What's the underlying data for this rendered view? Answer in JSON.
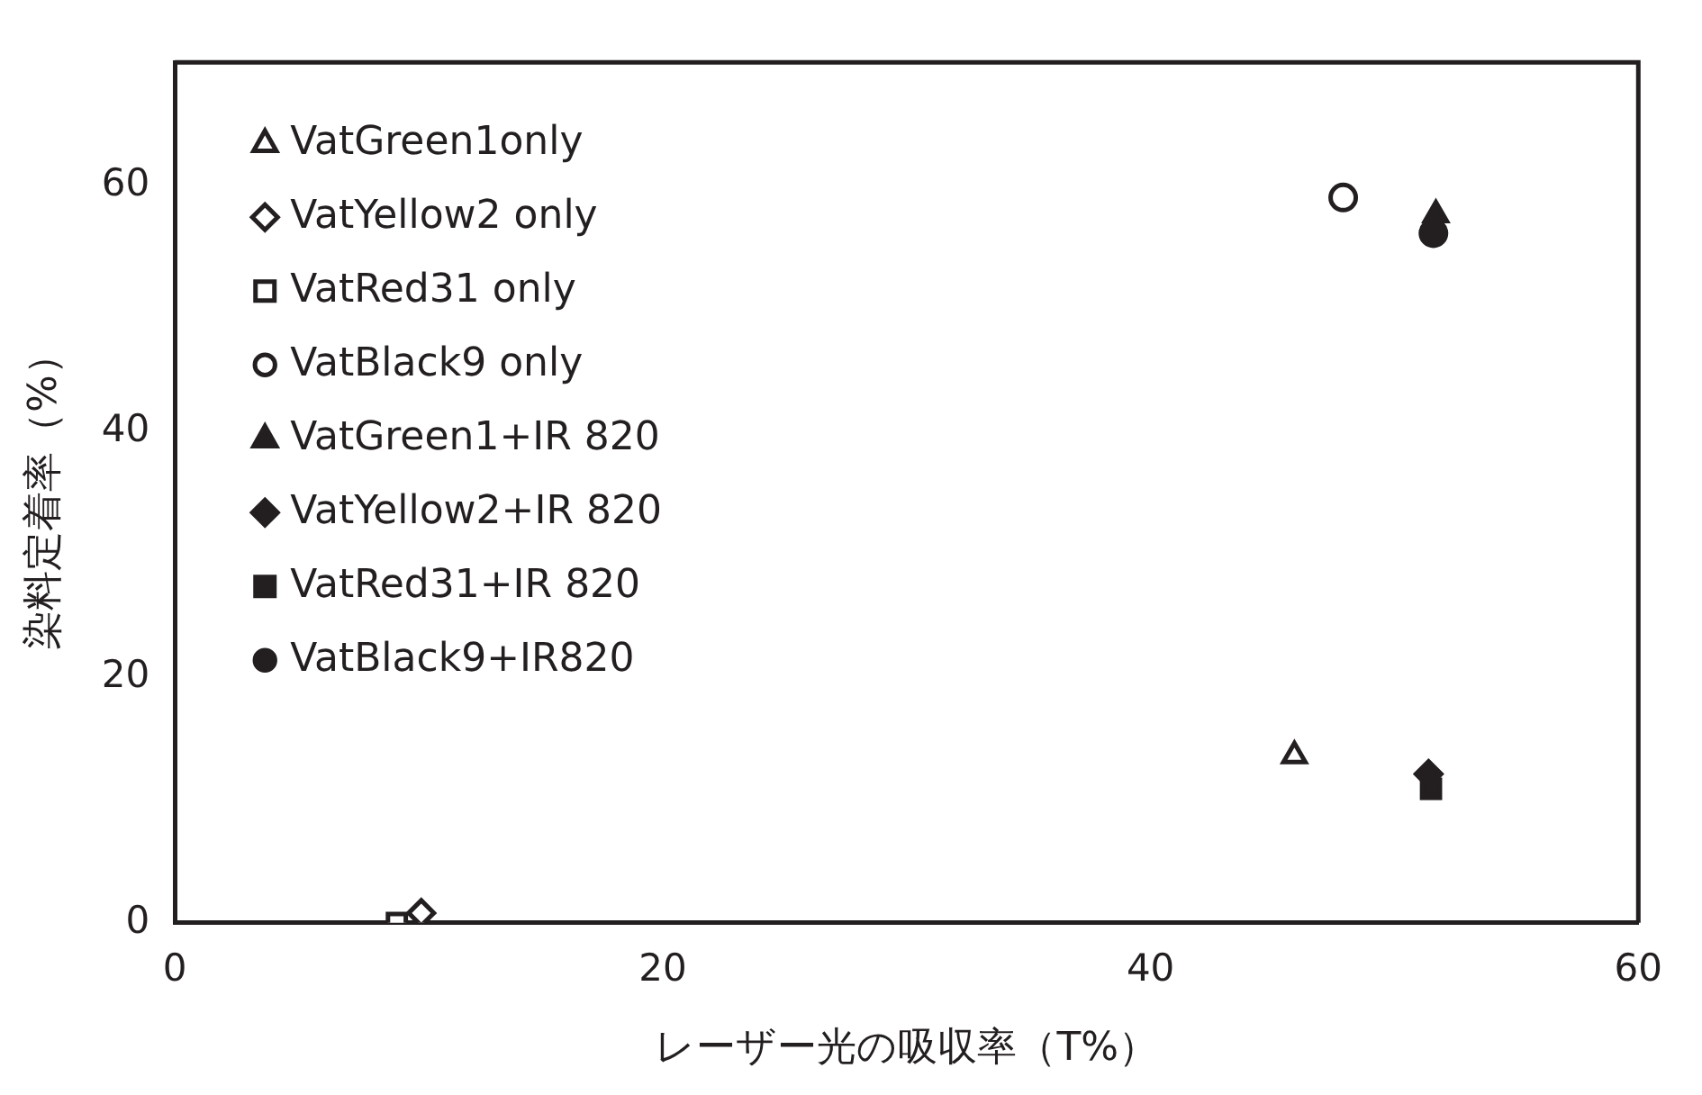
{
  "chart_data": {
    "type": "scatter",
    "xlabel": "レーザー光の吸収率（T%）",
    "ylabel": "染料定着率（%）",
    "xlim": [
      0,
      60
    ],
    "ylim": [
      0,
      70
    ],
    "xticks": [
      0,
      20,
      40,
      60
    ],
    "yticks": [
      0,
      20,
      40,
      60
    ],
    "grid": false,
    "legend": "top left",
    "series": [
      {
        "name": "VatGreen1only",
        "color": "#231f20",
        "marker": "triangle-open",
        "x": [
          45.9
        ],
        "values": [
          13.6
        ]
      },
      {
        "name": "VatYellow2 only",
        "color": "#231f20",
        "marker": "diamond-open",
        "x": [
          10.1
        ],
        "values": [
          0.8
        ]
      },
      {
        "name": "VatRed31 only",
        "color": "#231f20",
        "marker": "square-open",
        "x": [
          9.1
        ],
        "values": [
          0
        ]
      },
      {
        "name": "VatBlack9 only",
        "color": "#231f20",
        "marker": "circle-open",
        "x": [
          47.9
        ],
        "values": [
          59
        ]
      },
      {
        "name": "VatGreen1+IR 820",
        "color": "#231f20",
        "marker": "triangle",
        "x": [
          51.7
        ],
        "values": [
          57.6
        ]
      },
      {
        "name": "VatYellow2+IR 820",
        "color": "#231f20",
        "marker": "diamond",
        "x": [
          51.4
        ],
        "values": [
          12.1
        ]
      },
      {
        "name": "VatRed31+IR 820",
        "color": "#231f20",
        "marker": "square",
        "x": [
          51.5
        ],
        "values": [
          10.9
        ]
      },
      {
        "name": "VatBlack9+IR820",
        "color": "#231f20",
        "marker": "circle",
        "x": [
          51.6
        ],
        "values": [
          56.1
        ]
      }
    ]
  }
}
